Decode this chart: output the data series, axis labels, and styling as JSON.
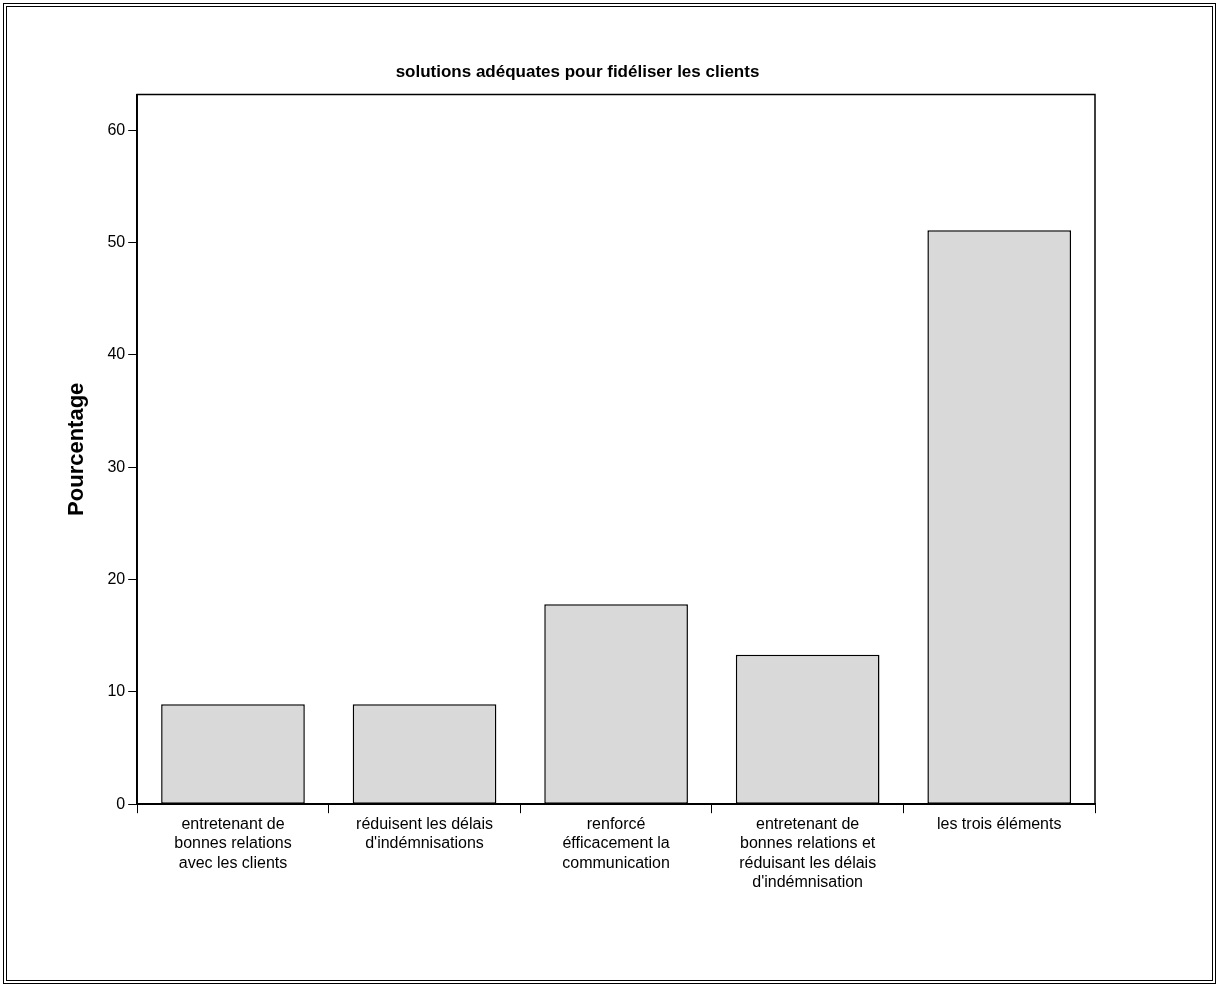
{
  "chart_data": {
    "type": "bar",
    "title": "solutions adéquates pour fidéliser les clients",
    "ylabel": "Pourcentage",
    "categories": [
      "entretenant de bonnes relations avec les clients",
      "réduisent les délais d'indémnisations",
      "renforcé éfficacement la communication",
      "entretenant de bonnes relations et réduisant les délais d'indémnisation",
      "les trois éléments"
    ],
    "values": [
      8.9,
      8.9,
      17.8,
      13.3,
      51.1
    ],
    "color": "#d9d9d9",
    "ylim": [
      0,
      63.2
    ],
    "yticks": [
      0,
      10,
      20,
      30,
      40,
      50,
      60
    ],
    "grid": false,
    "legend": false
  }
}
